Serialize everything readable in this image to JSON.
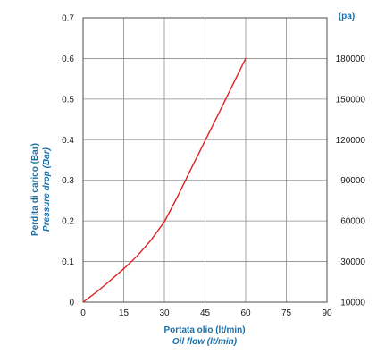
{
  "colors": {
    "line": "#e02020",
    "label": "#1a6fa8",
    "grid": "#8c8c8c",
    "frame": "#4d4d4d"
  },
  "chart_data": {
    "type": "line",
    "x": [
      0,
      5,
      10,
      15,
      20,
      25,
      30,
      35,
      40,
      45,
      50,
      55,
      60
    ],
    "series": [
      {
        "values": [
          0,
          0.025,
          0.053,
          0.082,
          0.114,
          0.152,
          0.198,
          0.262,
          0.33,
          0.397,
          0.464,
          0.532,
          0.6
        ]
      }
    ],
    "xlim": [
      0,
      90
    ],
    "ylim": [
      0,
      0.7
    ],
    "xticks": [
      "0",
      "15",
      "30",
      "45",
      "60",
      "75",
      "90"
    ],
    "yticks": [
      "0",
      "0.1",
      "0.2",
      "0.3",
      "0.4",
      "0.5",
      "0.6",
      "0.7"
    ],
    "y2ticks": [
      "10000",
      "30000",
      "60000",
      "90000",
      "120000",
      "150000",
      "180000"
    ],
    "y2unit": "(pa)",
    "xlabel": "Portata olio (lt/min)",
    "xlabel2": "Oil flow (lt/min)",
    "ylabel": "Perdita di carico (Bar)",
    "ylabel2": "Pressure drop (Bar)",
    "grid": true
  }
}
